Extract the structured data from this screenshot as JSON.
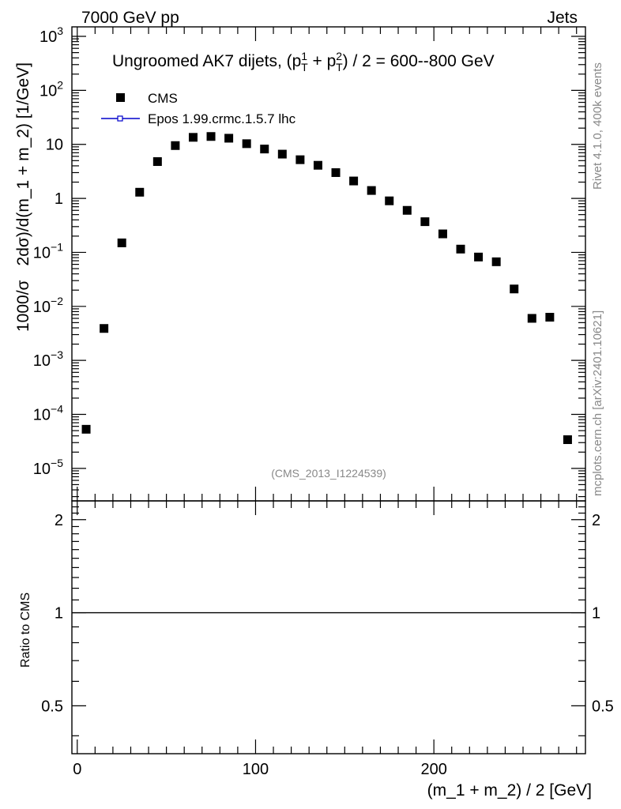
{
  "header": {
    "left_label": "7000 GeV pp",
    "right_label": "Jets"
  },
  "side_labels": {
    "rivet": "Rivet 4.1.0,  400k events",
    "mcplots": "mcplots.cern.ch [arXiv:2401.10621]"
  },
  "chart_data": [
    {
      "type": "scatter",
      "title": "Ungroomed AK7 dijets, (p_T^1 + p_T^2) / 2 = 600--800 GeV",
      "title_parts": {
        "prefix": "Ungroomed AK7 dijets, (p",
        "sub1": "T",
        "sup1": "1",
        "plus": " + p",
        "sub2": "T",
        "sup2": "2",
        "suffix": ") / 2 = 600--800 GeV"
      },
      "ylabel": "1000/σ  2dσ)/d(m_1 + m_2) [1/GeV]",
      "ylabel_parts": {
        "left": "1000/σ",
        "right": "2dσ)/d(m_1 + m_2) [1/GeV]"
      },
      "yscale": "log",
      "ylim": [
        2.5e-06,
        1500
      ],
      "xlim": [
        -3,
        285
      ],
      "y_tick_labels": [
        {
          "exp": -5,
          "mantissa": "10",
          "sup": "−5"
        },
        {
          "exp": -4,
          "mantissa": "10",
          "sup": "−4"
        },
        {
          "exp": -3,
          "mantissa": "10",
          "sup": "−3"
        },
        {
          "exp": -2,
          "mantissa": "10",
          "sup": "−2"
        },
        {
          "exp": -1,
          "mantissa": "10",
          "sup": "−1"
        },
        {
          "exp": 0,
          "mantissa": "1",
          "sup": ""
        },
        {
          "exp": 1,
          "mantissa": "10",
          "sup": ""
        },
        {
          "exp": 2,
          "mantissa": "10",
          "sup": "2"
        },
        {
          "exp": 3,
          "mantissa": "10",
          "sup": "3"
        }
      ],
      "legend": [
        {
          "name": "CMS",
          "marker": "square"
        },
        {
          "name": "Epos 1.99.crmc.1.5.7 lhc",
          "marker": "line-open-square"
        }
      ],
      "legend_position": "top-left",
      "annotation": "(CMS_2013_I1224539)",
      "series": [
        {
          "name": "CMS",
          "x": [
            5,
            15,
            25,
            35,
            45,
            55,
            65,
            75,
            85,
            95,
            105,
            115,
            125,
            135,
            145,
            155,
            165,
            175,
            185,
            195,
            205,
            215,
            225,
            235,
            245,
            255,
            265,
            275
          ],
          "y": [
            5.3e-05,
            0.0039,
            0.15,
            1.3,
            4.8,
            9.5,
            13.5,
            14.0,
            13.0,
            10.3,
            8.2,
            6.6,
            5.2,
            4.1,
            3.0,
            2.1,
            1.4,
            0.9,
            0.6,
            0.37,
            0.22,
            0.115,
            0.082,
            0.067,
            0.021,
            0.006,
            0.0063,
            3.4e-05
          ]
        }
      ],
      "colors": {
        "cms": "#000000",
        "epos": "#0000cc"
      }
    },
    {
      "type": "line",
      "ylabel": "Ratio to CMS",
      "xlabel": "(m_1 + m_2) / 2 [GeV]",
      "xlim": [
        -3,
        285
      ],
      "ylim": [
        0.35,
        2.3
      ],
      "x_ticks": [
        0,
        100,
        200
      ],
      "x_tick_labels": [
        "0",
        "100",
        "200"
      ],
      "y_tick_labels": [
        "0.5",
        "1",
        "2"
      ],
      "y_tick_values": [
        0.5,
        1,
        2
      ],
      "reference_line": 1
    }
  ]
}
